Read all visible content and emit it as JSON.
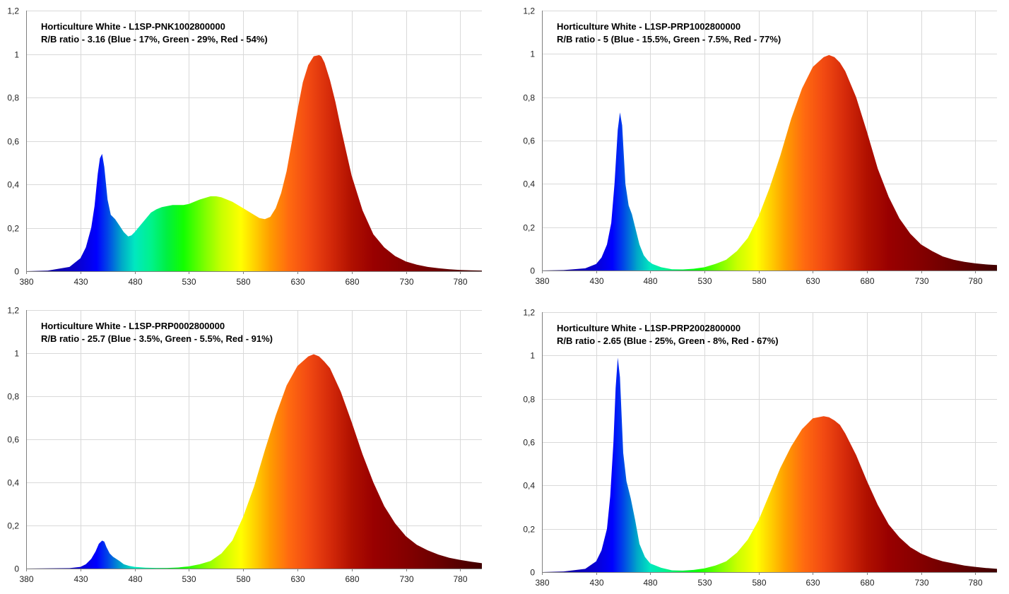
{
  "chart_data": [
    {
      "type": "area",
      "title": "Horticulture White - L1SP-PNK1002800000",
      "subtitle": "R/B ratio - 3.16 (Blue - 17%, Green - 29%, Red - 54%)",
      "xlabel": "",
      "ylabel": "",
      "xlim": [
        380,
        800
      ],
      "ylim": [
        0,
        1.2
      ],
      "x_ticks": [
        "380",
        "430",
        "480",
        "530",
        "580",
        "630",
        "680",
        "730",
        "780"
      ],
      "y_ticks": [
        "0",
        "0,2",
        "0,4",
        "0,6",
        "0,8",
        "1",
        "1,2"
      ],
      "grid": true,
      "fill": "spectral gradient",
      "x": [
        380,
        400,
        420,
        430,
        435,
        440,
        443,
        446,
        448,
        450,
        452,
        455,
        458,
        462,
        466,
        470,
        474,
        477,
        480,
        485,
        490,
        495,
        500,
        505,
        510,
        515,
        520,
        525,
        530,
        540,
        550,
        555,
        560,
        570,
        580,
        590,
        595,
        600,
        605,
        610,
        615,
        620,
        625,
        630,
        635,
        640,
        645,
        650,
        652,
        655,
        660,
        665,
        670,
        675,
        680,
        690,
        700,
        710,
        720,
        730,
        740,
        750,
        760,
        770,
        780,
        790,
        800
      ],
      "y": [
        0,
        0.003,
        0.02,
        0.06,
        0.11,
        0.2,
        0.3,
        0.45,
        0.52,
        0.54,
        0.48,
        0.33,
        0.26,
        0.24,
        0.21,
        0.18,
        0.16,
        0.165,
        0.18,
        0.21,
        0.24,
        0.27,
        0.285,
        0.295,
        0.3,
        0.305,
        0.305,
        0.305,
        0.31,
        0.33,
        0.345,
        0.345,
        0.34,
        0.32,
        0.29,
        0.26,
        0.245,
        0.24,
        0.25,
        0.29,
        0.36,
        0.46,
        0.6,
        0.74,
        0.87,
        0.95,
        0.99,
        0.995,
        0.99,
        0.96,
        0.88,
        0.78,
        0.66,
        0.55,
        0.44,
        0.28,
        0.17,
        0.11,
        0.07,
        0.045,
        0.03,
        0.02,
        0.014,
        0.009,
        0.006,
        0.004,
        0.003
      ]
    },
    {
      "type": "area",
      "title": "Horticulture White - L1SP-PRP1002800000",
      "subtitle": "R/B ratio - 5 (Blue - 15.5%, Green - 7.5%, Red - 77%)",
      "xlabel": "",
      "ylabel": "",
      "xlim": [
        380,
        800
      ],
      "ylim": [
        0,
        1.2
      ],
      "x_ticks": [
        "380",
        "430",
        "480",
        "530",
        "580",
        "630",
        "680",
        "730",
        "780"
      ],
      "y_ticks": [
        "0",
        "0,2",
        "0,4",
        "0,6",
        "0,8",
        "1",
        "1,2"
      ],
      "grid": true,
      "fill": "spectral gradient",
      "x": [
        380,
        400,
        420,
        430,
        435,
        440,
        444,
        447,
        450,
        452,
        454,
        457,
        460,
        463,
        466,
        470,
        474,
        478,
        482,
        490,
        500,
        510,
        520,
        530,
        540,
        550,
        560,
        570,
        580,
        590,
        600,
        610,
        620,
        630,
        640,
        645,
        650,
        655,
        660,
        670,
        680,
        690,
        700,
        710,
        720,
        730,
        740,
        750,
        760,
        770,
        780,
        790,
        800
      ],
      "y": [
        0,
        0.002,
        0.01,
        0.03,
        0.06,
        0.12,
        0.22,
        0.4,
        0.65,
        0.73,
        0.67,
        0.4,
        0.3,
        0.26,
        0.2,
        0.12,
        0.07,
        0.045,
        0.03,
        0.015,
        0.006,
        0.005,
        0.008,
        0.015,
        0.03,
        0.05,
        0.09,
        0.15,
        0.25,
        0.38,
        0.53,
        0.7,
        0.84,
        0.94,
        0.985,
        0.995,
        0.985,
        0.96,
        0.92,
        0.8,
        0.64,
        0.47,
        0.34,
        0.24,
        0.17,
        0.12,
        0.09,
        0.065,
        0.05,
        0.04,
        0.033,
        0.028,
        0.025
      ]
    },
    {
      "type": "area",
      "title": "Horticulture White - L1SP-PRP0002800000",
      "subtitle": "R/B ratio - 25.7 (Blue - 3.5%, Green - 5.5%, Red - 91%)",
      "xlabel": "",
      "ylabel": "",
      "xlim": [
        380,
        800
      ],
      "ylim": [
        0,
        1.2
      ],
      "x_ticks": [
        "380",
        "430",
        "480",
        "530",
        "580",
        "630",
        "680",
        "730",
        "780"
      ],
      "y_ticks": [
        "0",
        "0,2",
        "0,4",
        "0,6",
        "0,8",
        "1",
        "1,2"
      ],
      "grid": true,
      "fill": "spectral gradient",
      "x": [
        380,
        420,
        430,
        435,
        440,
        444,
        447,
        450,
        452,
        454,
        457,
        460,
        463,
        466,
        470,
        475,
        480,
        490,
        500,
        510,
        520,
        530,
        540,
        550,
        560,
        570,
        580,
        590,
        600,
        610,
        620,
        630,
        640,
        645,
        650,
        655,
        660,
        670,
        680,
        690,
        700,
        710,
        720,
        730,
        740,
        750,
        760,
        770,
        780,
        790,
        800
      ],
      "y": [
        0,
        0.002,
        0.008,
        0.02,
        0.045,
        0.08,
        0.115,
        0.13,
        0.125,
        0.1,
        0.07,
        0.055,
        0.045,
        0.035,
        0.02,
        0.012,
        0.008,
        0.004,
        0.003,
        0.003,
        0.005,
        0.01,
        0.02,
        0.035,
        0.07,
        0.13,
        0.24,
        0.38,
        0.55,
        0.71,
        0.85,
        0.94,
        0.985,
        0.995,
        0.985,
        0.96,
        0.93,
        0.82,
        0.68,
        0.53,
        0.4,
        0.29,
        0.21,
        0.15,
        0.11,
        0.085,
        0.065,
        0.05,
        0.04,
        0.032,
        0.025
      ]
    },
    {
      "type": "area",
      "title": "Horticulture White - L1SP-PRP2002800000",
      "subtitle": "R/B ratio - 2.65 (Blue - 25%, Green - 8%, Red - 67%)",
      "xlabel": "",
      "ylabel": "",
      "xlim": [
        380,
        800
      ],
      "ylim": [
        0,
        1.2
      ],
      "x_ticks": [
        "380",
        "430",
        "480",
        "530",
        "580",
        "630",
        "680",
        "730",
        "780"
      ],
      "y_ticks": [
        "0",
        "0,2",
        "0,4",
        "0,6",
        "0,8",
        "1",
        "1,2"
      ],
      "grid": true,
      "fill": "spectral gradient",
      "x": [
        380,
        400,
        420,
        430,
        435,
        440,
        443,
        446,
        448,
        450,
        452,
        455,
        458,
        462,
        466,
        470,
        475,
        480,
        490,
        500,
        510,
        520,
        530,
        540,
        550,
        560,
        570,
        580,
        590,
        600,
        610,
        620,
        630,
        640,
        645,
        650,
        655,
        660,
        670,
        680,
        690,
        700,
        710,
        720,
        730,
        740,
        750,
        760,
        770,
        780,
        790,
        800
      ],
      "y": [
        0,
        0.003,
        0.015,
        0.05,
        0.1,
        0.2,
        0.35,
        0.6,
        0.85,
        0.99,
        0.9,
        0.55,
        0.42,
        0.34,
        0.24,
        0.13,
        0.07,
        0.04,
        0.02,
        0.008,
        0.007,
        0.01,
        0.017,
        0.03,
        0.05,
        0.09,
        0.15,
        0.24,
        0.36,
        0.48,
        0.58,
        0.66,
        0.71,
        0.72,
        0.715,
        0.7,
        0.68,
        0.64,
        0.54,
        0.42,
        0.31,
        0.22,
        0.16,
        0.115,
        0.085,
        0.065,
        0.05,
        0.04,
        0.03,
        0.024,
        0.019,
        0.015
      ]
    }
  ]
}
